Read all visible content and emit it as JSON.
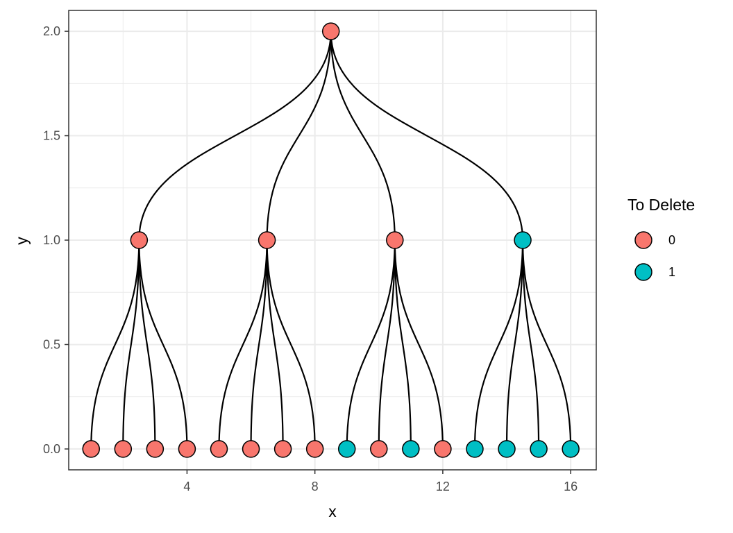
{
  "chart_data": {
    "type": "tree",
    "xlabel": "x",
    "ylabel": "y",
    "xlim": [
      0.3,
      16.8
    ],
    "ylim": [
      -0.1,
      2.1
    ],
    "xticks": [
      4,
      8,
      12,
      16
    ],
    "yticks": [
      0.0,
      0.5,
      1.0,
      1.5,
      2.0
    ],
    "ytick_labels": [
      "0.0",
      "0.5",
      "1.0",
      "1.5",
      "2.0"
    ],
    "grid": true,
    "legend": {
      "title": "To Delete",
      "placement": "right",
      "entries": [
        {
          "label": "0",
          "color": "#F8766D"
        },
        {
          "label": "1",
          "color": "#00BFC4"
        }
      ]
    },
    "nodes": [
      {
        "id": "root",
        "x": 8.5,
        "y": 2.0,
        "to_delete": 0
      },
      {
        "id": "a",
        "x": 2.5,
        "y": 1.0,
        "to_delete": 0
      },
      {
        "id": "b",
        "x": 6.5,
        "y": 1.0,
        "to_delete": 0
      },
      {
        "id": "c",
        "x": 10.5,
        "y": 1.0,
        "to_delete": 0
      },
      {
        "id": "d",
        "x": 14.5,
        "y": 1.0,
        "to_delete": 1
      },
      {
        "id": "l1",
        "x": 1,
        "y": 0.0,
        "to_delete": 0
      },
      {
        "id": "l2",
        "x": 2,
        "y": 0.0,
        "to_delete": 0
      },
      {
        "id": "l3",
        "x": 3,
        "y": 0.0,
        "to_delete": 0
      },
      {
        "id": "l4",
        "x": 4,
        "y": 0.0,
        "to_delete": 0
      },
      {
        "id": "l5",
        "x": 5,
        "y": 0.0,
        "to_delete": 0
      },
      {
        "id": "l6",
        "x": 6,
        "y": 0.0,
        "to_delete": 0
      },
      {
        "id": "l7",
        "x": 7,
        "y": 0.0,
        "to_delete": 0
      },
      {
        "id": "l8",
        "x": 8,
        "y": 0.0,
        "to_delete": 0
      },
      {
        "id": "l9",
        "x": 9,
        "y": 0.0,
        "to_delete": 1
      },
      {
        "id": "l10",
        "x": 10,
        "y": 0.0,
        "to_delete": 0
      },
      {
        "id": "l11",
        "x": 11,
        "y": 0.0,
        "to_delete": 1
      },
      {
        "id": "l12",
        "x": 12,
        "y": 0.0,
        "to_delete": 0
      },
      {
        "id": "l13",
        "x": 13,
        "y": 0.0,
        "to_delete": 1
      },
      {
        "id": "l14",
        "x": 14,
        "y": 0.0,
        "to_delete": 1
      },
      {
        "id": "l15",
        "x": 15,
        "y": 0.0,
        "to_delete": 1
      },
      {
        "id": "l16",
        "x": 16,
        "y": 0.0,
        "to_delete": 1
      }
    ],
    "edges": [
      [
        "root",
        "a"
      ],
      [
        "root",
        "b"
      ],
      [
        "root",
        "c"
      ],
      [
        "root",
        "d"
      ],
      [
        "a",
        "l1"
      ],
      [
        "a",
        "l2"
      ],
      [
        "a",
        "l3"
      ],
      [
        "a",
        "l4"
      ],
      [
        "b",
        "l5"
      ],
      [
        "b",
        "l6"
      ],
      [
        "b",
        "l7"
      ],
      [
        "b",
        "l8"
      ],
      [
        "c",
        "l9"
      ],
      [
        "c",
        "l10"
      ],
      [
        "c",
        "l11"
      ],
      [
        "c",
        "l12"
      ],
      [
        "d",
        "l13"
      ],
      [
        "d",
        "l14"
      ],
      [
        "d",
        "l15"
      ],
      [
        "d",
        "l16"
      ]
    ]
  }
}
